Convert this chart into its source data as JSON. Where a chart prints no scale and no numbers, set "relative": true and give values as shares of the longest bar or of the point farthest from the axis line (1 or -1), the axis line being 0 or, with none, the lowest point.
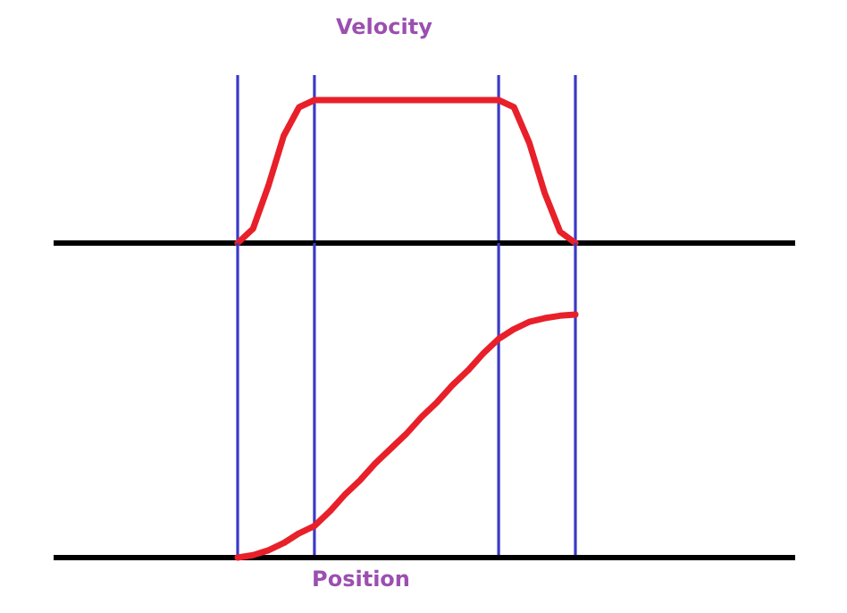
{
  "chart_data": [
    {
      "type": "line",
      "title": "Velocity",
      "relative": true,
      "marker": "none",
      "line_style": "solid",
      "categories": [
        null,
        null,
        null,
        null,
        null,
        null,
        null,
        null,
        null,
        null,
        null,
        null,
        null,
        null,
        null,
        null,
        null,
        null,
        null,
        null,
        null,
        null,
        null
      ],
      "series": [
        {
          "color": "#e8202a",
          "values": [
            0,
            0.1,
            0.4,
            0.75,
            0.95,
            1,
            1,
            1,
            1,
            1,
            1,
            1,
            1,
            1,
            1,
            1,
            1,
            1,
            0.95,
            0.7,
            0.35,
            0.08,
            0
          ]
        }
      ],
      "grid": "x"
    },
    {
      "type": "line",
      "xlabel": "Position",
      "relative": true,
      "marker": "none",
      "line_style": "solid",
      "categories": [
        null,
        null,
        null,
        null,
        null,
        null,
        null,
        null,
        null,
        null,
        null,
        null,
        null,
        null,
        null,
        null,
        null,
        null,
        null,
        null,
        null,
        null,
        null
      ],
      "series": [
        {
          "color": "#e8202a",
          "values": [
            0,
            0.01,
            0.03,
            0.06,
            0.1,
            0.13,
            0.19,
            0.26,
            0.32,
            0.39,
            0.45,
            0.51,
            0.58,
            0.64,
            0.71,
            0.77,
            0.84,
            0.9,
            0.94,
            0.97,
            0.985,
            0.995,
            1
          ]
        }
      ],
      "grid": "x"
    }
  ]
}
